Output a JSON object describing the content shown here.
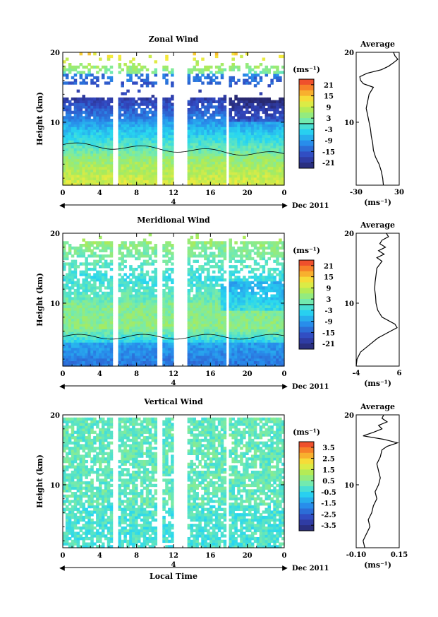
{
  "chart_data": [
    {
      "type": "heatmap",
      "title": "Zonal Wind",
      "ylabel": "Height (km)",
      "xticks": [
        "0",
        "4",
        "8",
        "12",
        "16",
        "20",
        "0"
      ],
      "yticks": [
        "20",
        "10"
      ],
      "xlim": [
        0,
        24
      ],
      "ylim": [
        1,
        20
      ],
      "date_label": "Dec 2011",
      "date_marker": "4",
      "colorbar": {
        "unit": "(ms⁻¹)",
        "ticks": [
          "21",
          "15",
          "9",
          "3",
          "-3",
          "-9",
          "-15",
          "-21"
        ],
        "range": [
          -24,
          24
        ]
      },
      "gaps": [
        [
          5.3,
          5.9
        ],
        [
          10.3,
          10.8
        ],
        [
          12.0,
          13.4
        ],
        [
          17.6,
          18.0
        ]
      ],
      "average": {
        "title": "Average",
        "xlabel": "(ms⁻¹)",
        "xticks": [
          "-30",
          "30"
        ],
        "yticks": [
          "20",
          "10"
        ],
        "xlim": [
          -30,
          30
        ],
        "profile": [
          [
            1,
            8
          ],
          [
            2,
            7
          ],
          [
            3,
            5
          ],
          [
            4,
            2
          ],
          [
            5,
            -3
          ],
          [
            6,
            -6
          ],
          [
            7,
            -7
          ],
          [
            8,
            -9
          ],
          [
            9,
            -10
          ],
          [
            10,
            -12
          ],
          [
            11,
            -14
          ],
          [
            12,
            -16
          ],
          [
            13,
            -14
          ],
          [
            14,
            -12
          ],
          [
            15,
            -6
          ],
          [
            15.5,
            -20
          ],
          [
            16,
            -24
          ],
          [
            16.5,
            -25
          ],
          [
            17,
            -15
          ],
          [
            17.5,
            5
          ],
          [
            18,
            15
          ],
          [
            18.5,
            22
          ],
          [
            19,
            28
          ],
          [
            19.5,
            24
          ],
          [
            20,
            22
          ]
        ]
      }
    },
    {
      "type": "heatmap",
      "title": "Meridional Wind",
      "ylabel": "Height (km)",
      "xticks": [
        "0",
        "4",
        "8",
        "12",
        "16",
        "20",
        "0"
      ],
      "yticks": [
        "20",
        "10"
      ],
      "xlim": [
        0,
        24
      ],
      "ylim": [
        1,
        20
      ],
      "date_label": "Dec 2011",
      "date_marker": "4",
      "colorbar": {
        "unit": "(ms⁻¹)",
        "ticks": [
          "21",
          "15",
          "9",
          "3",
          "-3",
          "-9",
          "-15",
          "-21"
        ],
        "range": [
          -24,
          24
        ]
      },
      "gaps": [
        [
          5.3,
          5.9
        ],
        [
          10.3,
          10.8
        ],
        [
          12.0,
          13.4
        ],
        [
          17.6,
          18.0
        ]
      ],
      "average": {
        "title": "Average",
        "xlabel": "(ms⁻¹)",
        "xticks": [
          "-4",
          "6"
        ],
        "yticks": [
          "20",
          "10"
        ],
        "xlim": [
          -4,
          6
        ],
        "profile": [
          [
            1,
            -4
          ],
          [
            2,
            -3.8
          ],
          [
            3,
            -3
          ],
          [
            4,
            -1
          ],
          [
            5,
            1
          ],
          [
            6,
            4
          ],
          [
            6.5,
            5.5
          ],
          [
            7,
            5
          ],
          [
            8,
            2
          ],
          [
            9,
            1
          ],
          [
            10,
            0.6
          ],
          [
            11,
            0.5
          ],
          [
            12,
            0.3
          ],
          [
            13,
            0.4
          ],
          [
            14,
            0.6
          ],
          [
            15,
            0.8
          ],
          [
            16,
            2
          ],
          [
            16.5,
            0.8
          ],
          [
            17,
            2.5
          ],
          [
            17.5,
            1.2
          ],
          [
            18,
            2.8
          ],
          [
            18.5,
            1.5
          ],
          [
            19,
            2
          ],
          [
            19.5,
            3.5
          ],
          [
            20,
            3
          ]
        ]
      }
    },
    {
      "type": "heatmap",
      "title": "Vertical Wind",
      "ylabel": "Height (km)",
      "xlabel": "Local Time",
      "xticks": [
        "0",
        "4",
        "8",
        "12",
        "16",
        "20",
        "0"
      ],
      "yticks": [
        "20",
        "10"
      ],
      "xlim": [
        0,
        24
      ],
      "ylim": [
        1,
        20
      ],
      "date_label": "Dec 2011",
      "date_marker": "4",
      "colorbar": {
        "unit": "(ms⁻¹)",
        "ticks": [
          "3.5",
          "2.5",
          "1.5",
          "0.5",
          "-0.5",
          "-1.5",
          "-2.5",
          "-3.5"
        ],
        "range": [
          -4,
          4
        ]
      },
      "gaps": [
        [
          5.3,
          5.9
        ],
        [
          10.3,
          10.8
        ],
        [
          12.0,
          13.4
        ],
        [
          17.6,
          18.0
        ]
      ],
      "average": {
        "title": "Average",
        "xlabel": "(ms⁻¹)",
        "xticks": [
          "-0.10",
          "0.15"
        ],
        "yticks": [
          "20",
          "10"
        ],
        "xlim": [
          -0.1,
          0.15
        ],
        "profile": [
          [
            1,
            -0.05
          ],
          [
            2,
            -0.06
          ],
          [
            3,
            -0.04
          ],
          [
            4,
            -0.02
          ],
          [
            5,
            -0.03
          ],
          [
            6,
            -0.01
          ],
          [
            7,
            0
          ],
          [
            8,
            0.02
          ],
          [
            9,
            0.01
          ],
          [
            10,
            0.03
          ],
          [
            11,
            0.04
          ],
          [
            12,
            0.03
          ],
          [
            13,
            0.02
          ],
          [
            14,
            0.04
          ],
          [
            15,
            0.05
          ],
          [
            15.5,
            0.08
          ],
          [
            16,
            0.14
          ],
          [
            16.5,
            0.06
          ],
          [
            17,
            -0.06
          ],
          [
            17.5,
            0
          ],
          [
            18,
            0.05
          ],
          [
            18.5,
            0.03
          ],
          [
            19,
            0.08
          ],
          [
            19.5,
            0.05
          ],
          [
            20,
            0.06
          ]
        ]
      }
    }
  ]
}
